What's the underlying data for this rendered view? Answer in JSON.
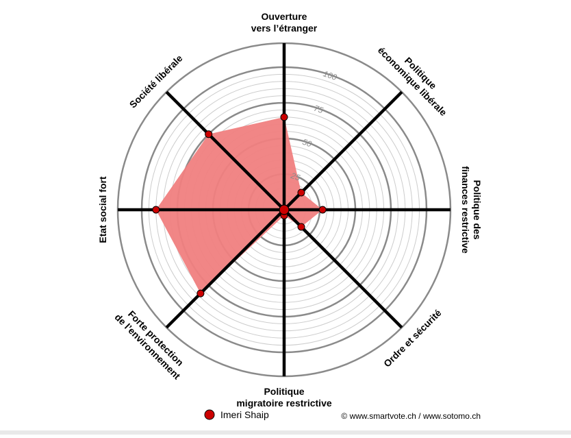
{
  "chart_data": {
    "type": "radar",
    "axes": [
      "Ouverture vers l’étranger",
      "Politique économique libérale",
      "Politique des finances restrictive",
      "Ordre et sécurité",
      "Politique migratoire restrictive",
      "Forte protection de l’environnement",
      "Etat social fort",
      "Société libérale"
    ],
    "axis_label_lines": [
      [
        "Ouverture",
        "vers l’étranger"
      ],
      [
        "Politique",
        "économique libérale"
      ],
      [
        "Politique des",
        "finances restrictive"
      ],
      [
        "Ordre et sécurité"
      ],
      [
        "Politique",
        "migratoire restrictive"
      ],
      [
        "Forte protection",
        "de l’environnement"
      ],
      [
        "Etat social fort"
      ],
      [
        "Société libérale"
      ]
    ],
    "series": [
      {
        "name": "Imeri Shaip",
        "values": [
          65,
          17,
          27,
          17,
          4,
          83,
          90,
          75
        ]
      }
    ],
    "range": [
      0,
      100
    ],
    "ticks": [
      25,
      50,
      75,
      100
    ],
    "grid": true,
    "legend_position": "bottom"
  },
  "colors": {
    "fill": "#f08080",
    "point": "#cc0000",
    "spoke": "#000000",
    "major_ring": "#8a8a8a",
    "minor_ring": "#cccccc"
  },
  "legend": {
    "marker": "red-dot"
  },
  "credit": "© www.smartvote.ch / www.sotomo.ch"
}
